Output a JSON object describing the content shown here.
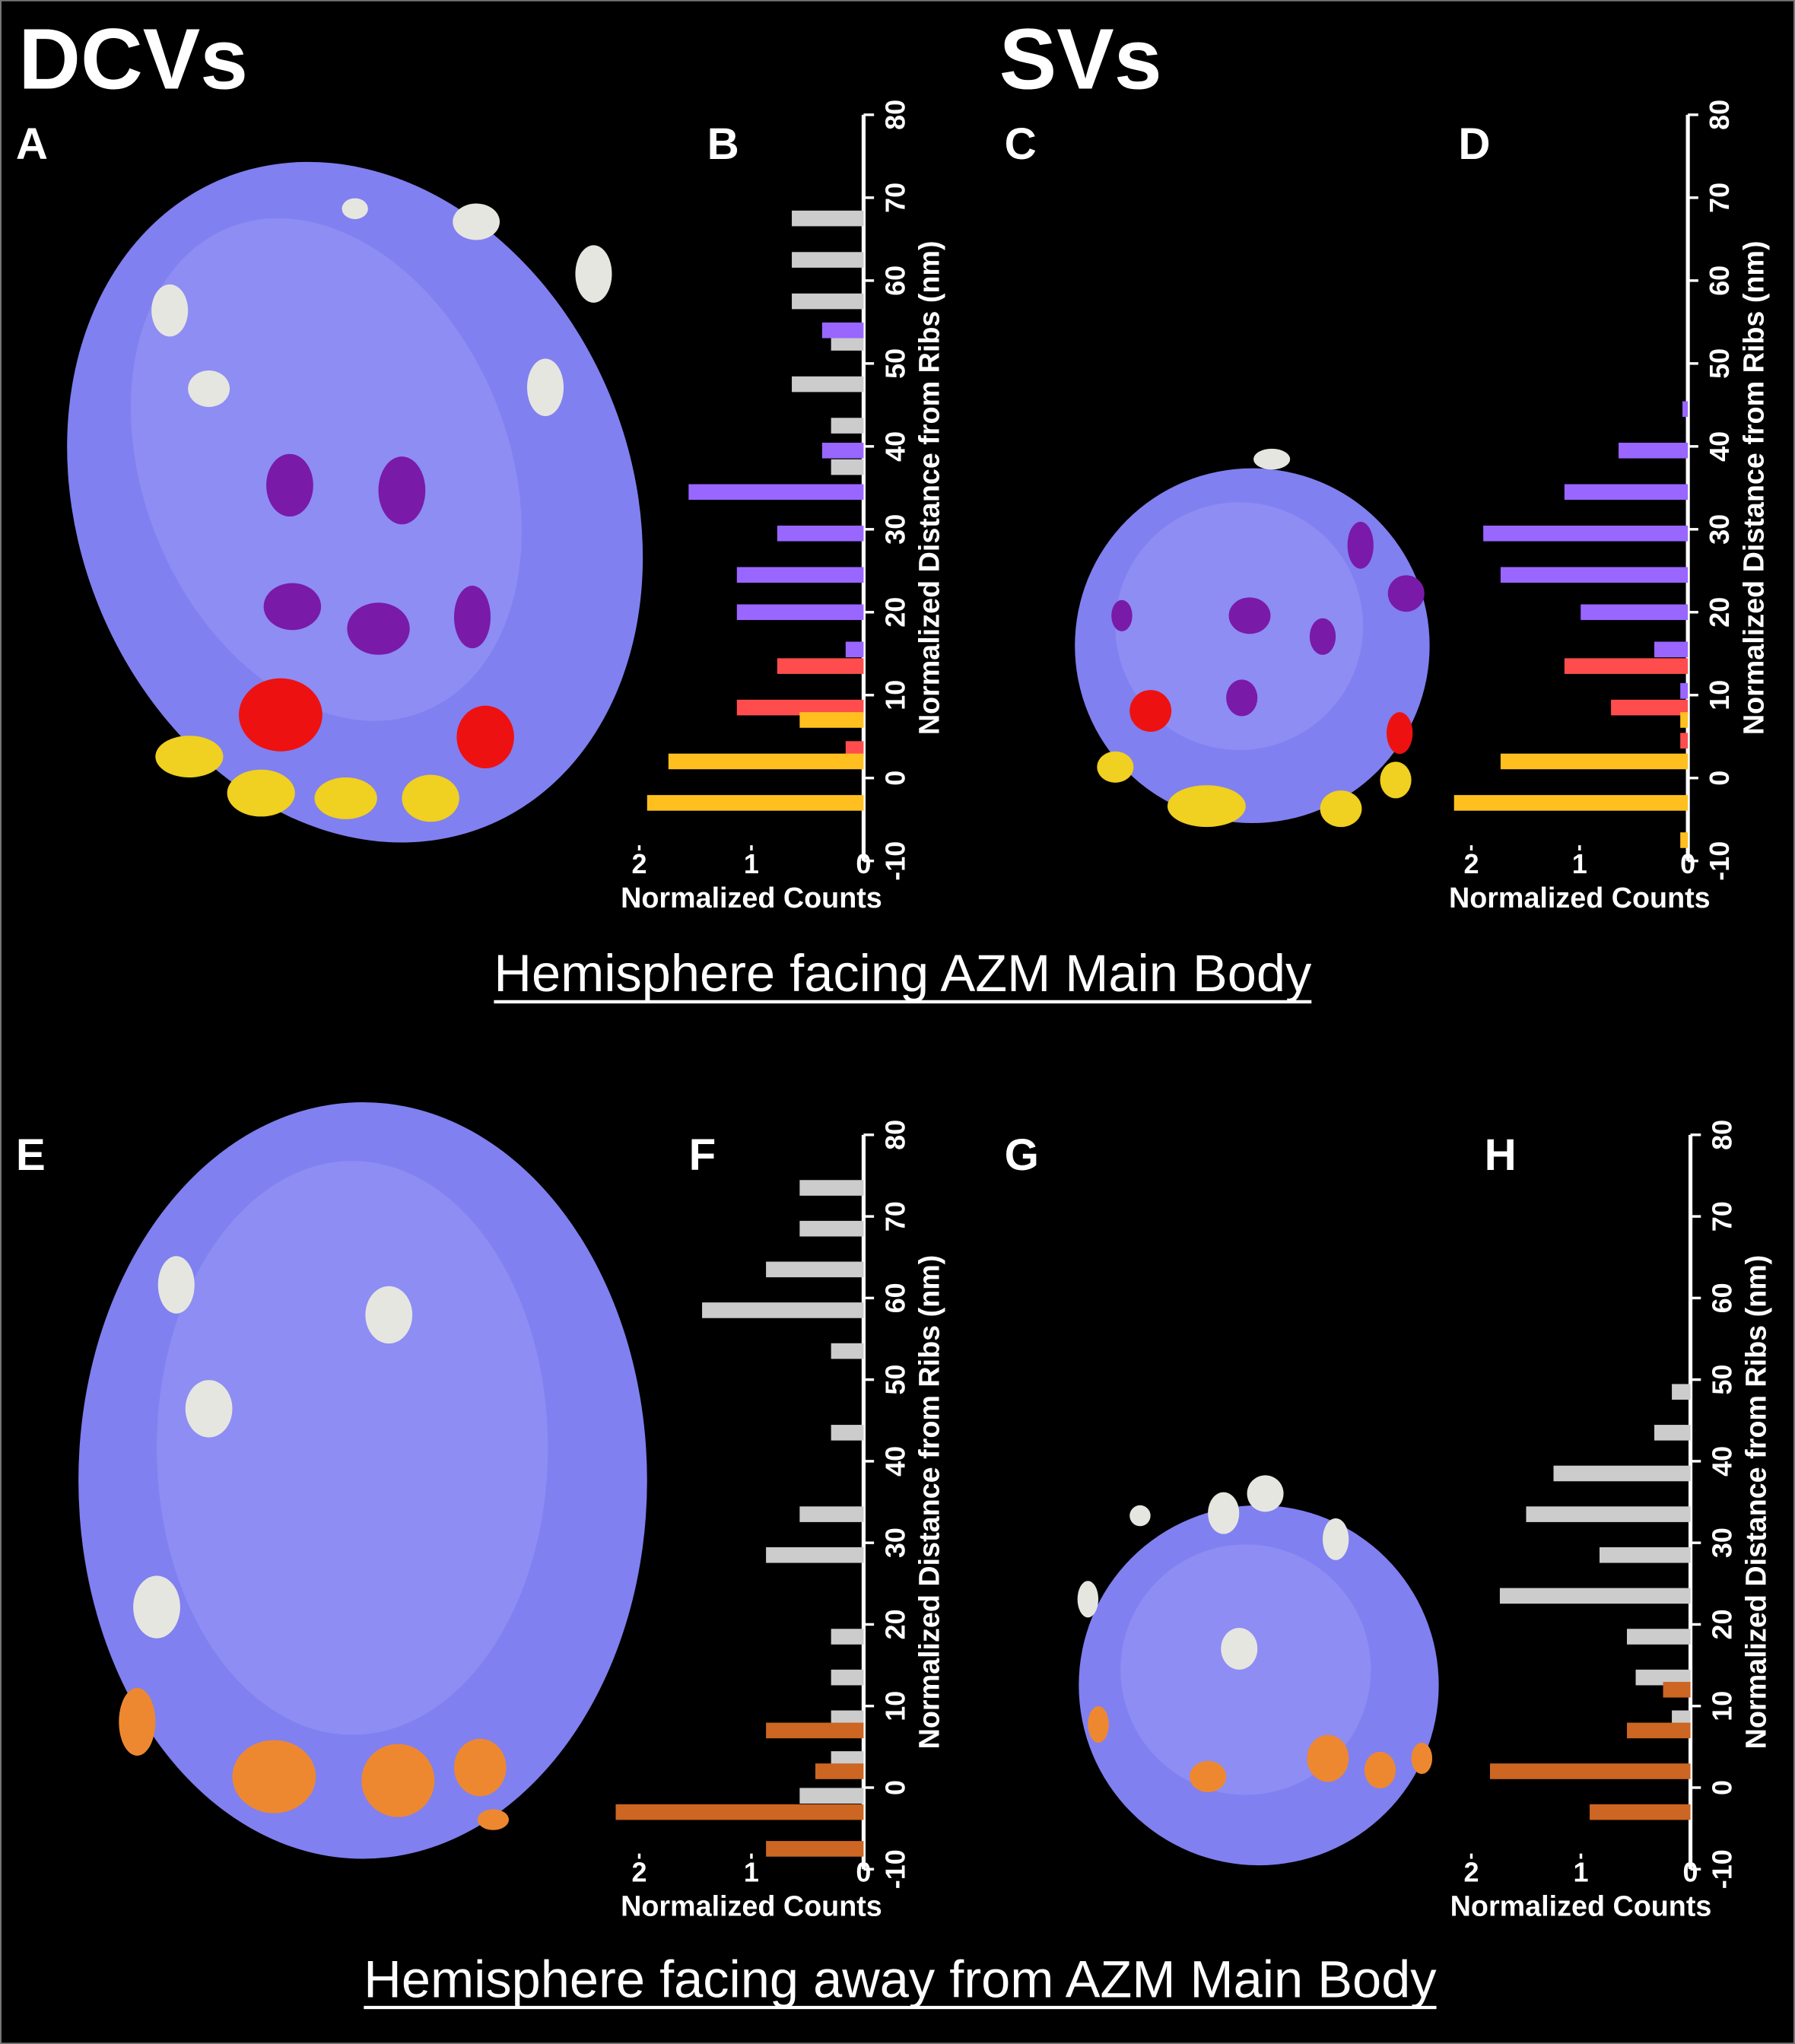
{
  "figure": {
    "headings": [
      "DCVs",
      "SVs"
    ],
    "panel_labels": [
      "A",
      "C",
      "E",
      "G"
    ],
    "captions": [
      "Hemisphere facing AZM Main Body",
      "Hemisphere facing away from AZM Main Body"
    ]
  },
  "chart_data": [
    {
      "type": "bar",
      "orientation": "horizontal",
      "title": "B",
      "xlabel": "Normalized Counts",
      "ylabel": "Normalized Distance from Ribs (nm)",
      "xlim": [
        2,
        0
      ],
      "xticks": [
        2,
        1,
        0
      ],
      "ylim": [
        -10,
        80
      ],
      "yticks": [
        -10,
        0,
        10,
        20,
        30,
        40,
        50,
        60,
        70,
        80
      ],
      "series": [
        {
          "color": "#cccccc",
          "x": [
            67.5,
            62.5,
            57.5,
            52.5,
            47.5,
            42.5,
            37.5
          ],
          "values": [
            0.64,
            0.64,
            0.64,
            0.29,
            0.64,
            0.29,
            0.29
          ]
        },
        {
          "color": "#9966ff",
          "x": [
            54,
            39.5,
            34.5,
            29.5,
            24.5,
            20,
            15.5
          ],
          "values": [
            0.37,
            0.37,
            1.56,
            0.77,
            1.13,
            1.13,
            0.16
          ]
        },
        {
          "color": "#ff4d4d",
          "x": [
            13.5,
            8.5,
            3.5
          ],
          "values": [
            0.77,
            1.13,
            0.16
          ]
        },
        {
          "color": "#ffc01f",
          "x": [
            7,
            2,
            -3
          ],
          "values": [
            0.57,
            1.74,
            1.93
          ]
        }
      ]
    },
    {
      "type": "bar",
      "orientation": "horizontal",
      "title": "D",
      "xlabel": "Normalized Counts",
      "ylabel": "Normalized Distance from Ribs (nm)",
      "xlim": [
        2,
        0
      ],
      "xticks": [
        2,
        1,
        0
      ],
      "ylim": [
        -10,
        80
      ],
      "yticks": [
        -10,
        0,
        10,
        20,
        30,
        40,
        50,
        60,
        70,
        80
      ],
      "series": [
        {
          "color": "#9966ff",
          "x": [
            44.5,
            39.5,
            34.5,
            29.5,
            24.5,
            20,
            15.5,
            10.5
          ],
          "values": [
            0.05,
            0.64,
            1.14,
            1.89,
            1.73,
            0.99,
            0.31,
            0.07
          ]
        },
        {
          "color": "#ff4d4d",
          "x": [
            13.5,
            8.5,
            4.5
          ],
          "values": [
            1.14,
            0.71,
            0.07
          ]
        },
        {
          "color": "#ffc01f",
          "x": [
            7,
            2,
            -3,
            -7.5
          ],
          "values": [
            0.07,
            1.73,
            2.16,
            0.07
          ]
        }
      ]
    },
    {
      "type": "bar",
      "orientation": "horizontal",
      "title": "F",
      "xlabel": "Normalized Counts",
      "ylabel": "Normalized Distance from Ribs (nm)",
      "xlim": [
        2,
        0
      ],
      "xticks": [
        2,
        1,
        0
      ],
      "ylim": [
        -10,
        80
      ],
      "yticks": [
        -10,
        0,
        10,
        20,
        30,
        40,
        50,
        60,
        70,
        80
      ],
      "series": [
        {
          "color": "#cccccc",
          "x": [
            73.5,
            68.5,
            63.5,
            58.5,
            53.5,
            43.5,
            33.5,
            28.5,
            18.5,
            13.5,
            8.5,
            3.5,
            -1
          ],
          "values": [
            0.57,
            0.57,
            0.87,
            1.44,
            0.29,
            0.29,
            0.57,
            0.87,
            0.29,
            0.29,
            0.29,
            0.29,
            0.57
          ]
        },
        {
          "color": "#cc6622",
          "x": [
            7,
            2,
            -3,
            -7.5
          ],
          "values": [
            0.87,
            0.43,
            2.21,
            0.87
          ]
        }
      ]
    },
    {
      "type": "bar",
      "orientation": "horizontal",
      "title": "H",
      "xlabel": "Normalized Counts",
      "ylabel": "Normalized Distance from Ribs (nm)",
      "xlim": [
        2,
        0
      ],
      "xticks": [
        2,
        1,
        0
      ],
      "ylim": [
        -10,
        80
      ],
      "yticks": [
        -10,
        0,
        10,
        20,
        30,
        40,
        50,
        60,
        70,
        80
      ],
      "series": [
        {
          "color": "#cccccc",
          "x": [
            48.5,
            43.5,
            38.5,
            33.5,
            28.5,
            23.5,
            18.5,
            13.5,
            8.5
          ],
          "values": [
            0.17,
            0.33,
            1.25,
            1.5,
            0.83,
            1.74,
            0.58,
            0.5,
            0.17
          ]
        },
        {
          "color": "#cc6622",
          "x": [
            12,
            7,
            2,
            -3
          ],
          "values": [
            0.25,
            0.58,
            1.83,
            0.92
          ]
        }
      ]
    }
  ]
}
